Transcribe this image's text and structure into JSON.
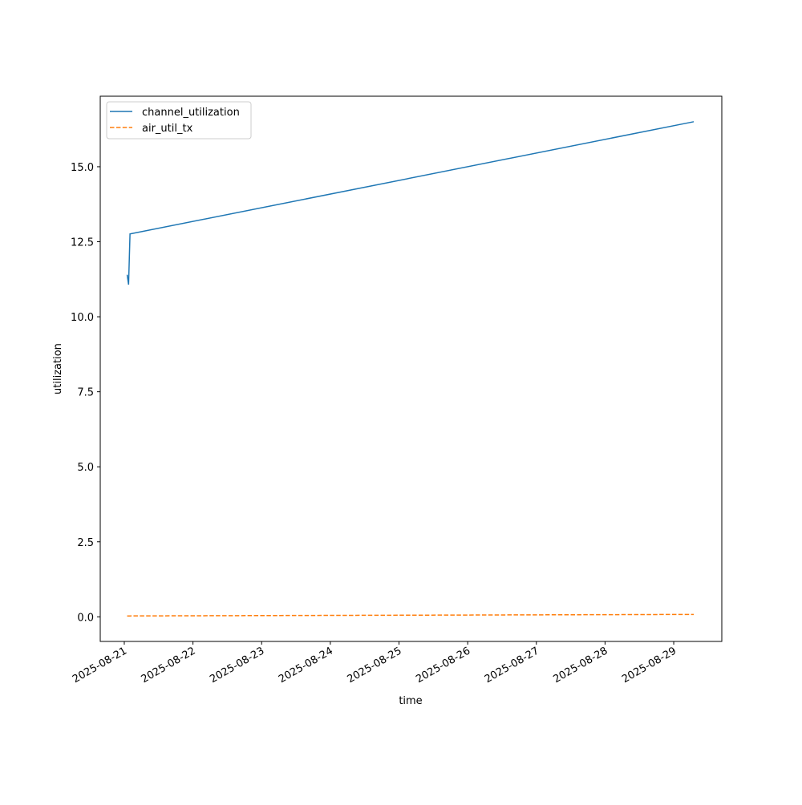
{
  "chart_data": {
    "type": "line",
    "xlabel": "time",
    "ylabel": "utilization",
    "x": [
      "2025-08-21T01:00",
      "2025-08-21T01:30",
      "2025-08-21T02:00",
      "2025-08-29T07:00"
    ],
    "series": [
      {
        "name": "channel_utilization",
        "color": "#1f77b4",
        "dash": "solid",
        "values": [
          11.4,
          11.07,
          12.76,
          16.5
        ]
      },
      {
        "name": "air_util_tx",
        "color": "#ff7f0e",
        "dash": "dashed",
        "values": [
          0.03,
          0.03,
          0.03,
          0.08
        ]
      }
    ],
    "xlim": [
      "2025-08-20T15:36",
      "2025-08-29T16:48"
    ],
    "xticks": [
      "2025-08-21",
      "2025-08-22",
      "2025-08-23",
      "2025-08-24",
      "2025-08-25",
      "2025-08-26",
      "2025-08-27",
      "2025-08-28",
      "2025-08-29"
    ],
    "ylim": [
      -0.82,
      17.35
    ],
    "yticks": [
      {
        "value": 0,
        "label": "0.0"
      },
      {
        "value": 2.5,
        "label": "2.5"
      },
      {
        "value": 5,
        "label": "5.0"
      },
      {
        "value": 7.5,
        "label": "7.5"
      },
      {
        "value": 10,
        "label": "10.0"
      },
      {
        "value": 12.5,
        "label": "12.5"
      },
      {
        "value": 15,
        "label": "15.0"
      }
    ],
    "legend": "upper left",
    "grid": false
  }
}
